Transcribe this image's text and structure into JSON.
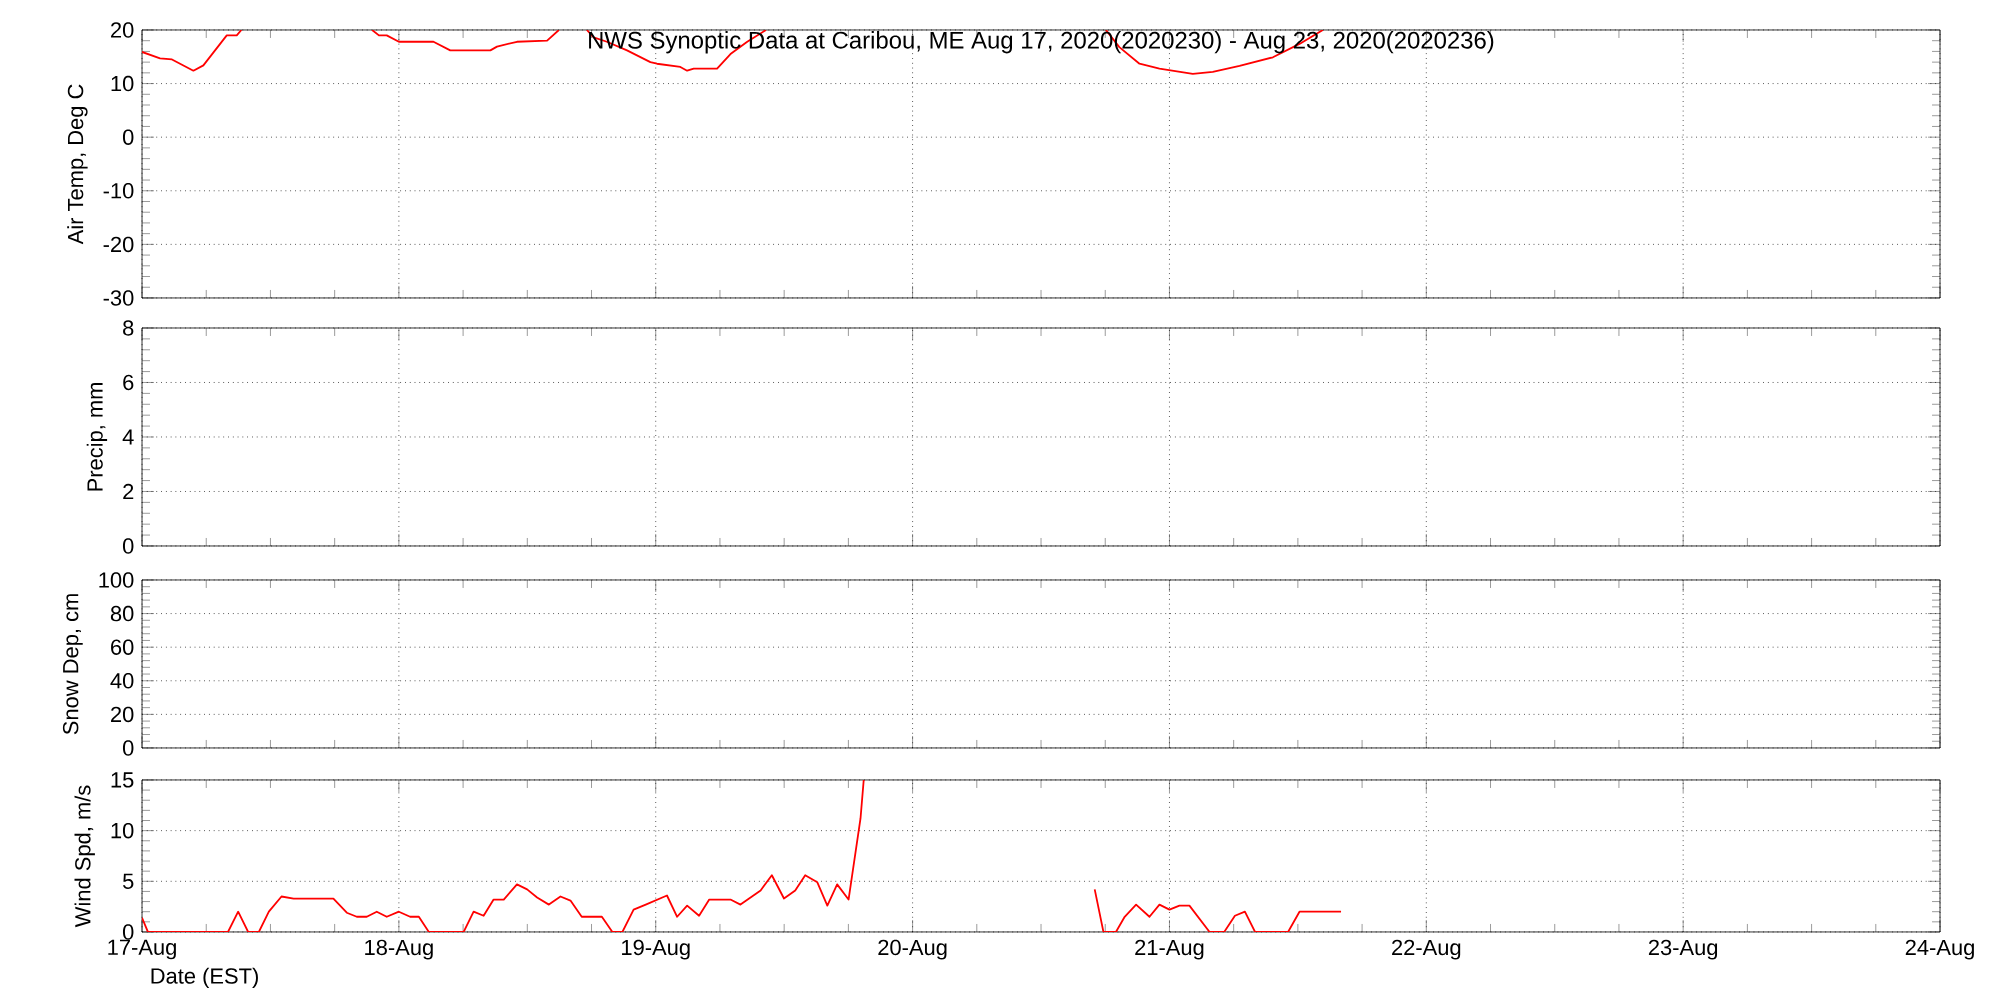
{
  "chart_data": [
    {
      "type": "line",
      "title": "NWS Synoptic Data at Caribou, ME   Aug 17, 2020(2020230) - Aug 23, 2020(2020236)",
      "ylabel": "Air Temp, Deg C",
      "color": "#ff0000",
      "x": [
        "2020-08-17T00:00",
        "2020-08-17T01:41",
        "2020-08-17T02:48",
        "2020-08-17T04:48",
        "2020-08-17T05:44",
        "2020-08-17T07:55",
        "2020-08-17T08:51",
        "2020-08-17T09:17",
        "2020-08-17T14:24",
        "2020-08-17T21:30",
        "2020-08-17T22:08",
        "2020-08-17T22:52",
        "2020-08-18T00:00",
        "2020-08-18T03:14",
        "2020-08-18T04:48",
        "2020-08-18T08:33",
        "2020-08-18T09:10",
        "2020-08-18T11:02",
        "2020-08-18T13:51",
        "2020-08-18T14:57",
        "2020-08-18T16:19",
        "2020-08-18T17:34",
        "2020-08-18T18:12",
        "2020-08-18T19:26",
        "2020-08-18T21:19",
        "2020-08-18T23:30",
        "2020-08-19T00:07",
        "2020-08-19T02:18",
        "2020-08-19T02:56",
        "2020-08-19T03:33",
        "2020-08-19T05:44",
        "2020-08-19T06:59",
        "2020-08-19T08:33",
        "2020-08-19T10:18",
        "2020-08-20T02:24",
        "2020-08-20T18:04",
        "2020-08-20T19:19",
        "2020-08-20T21:12",
        "2020-08-20T23:04",
        "2020-08-21T02:11",
        "2020-08-21T04:03",
        "2020-08-21T06:33",
        "2020-08-21T09:40",
        "2020-08-21T12:09",
        "2020-08-21T14:20"
      ],
      "values": [
        15.9,
        14.7,
        14.5,
        12.4,
        13.4,
        19.0,
        19.0,
        20,
        null,
        20,
        19.0,
        19.0,
        17.8,
        17.8,
        16.2,
        16.2,
        16.9,
        17.8,
        18.0,
        20,
        null,
        20,
        18.6,
        17.8,
        16.2,
        14.0,
        13.7,
        13.1,
        12.4,
        12.8,
        12.8,
        15.5,
        17.8,
        20,
        null,
        20,
        16.8,
        13.7,
        12.8,
        11.8,
        12.2,
        13.3,
        14.9,
        17.4,
        20
      ],
      "xlim": [
        "2020-08-17",
        "2020-08-24"
      ],
      "xticks": [
        {
          "value": "2020-08-17",
          "label": null
        },
        {
          "value": "2020-08-18",
          "label": null
        },
        {
          "value": "2020-08-19",
          "label": null
        },
        {
          "value": "2020-08-20",
          "label": null
        },
        {
          "value": "2020-08-21",
          "label": null
        },
        {
          "value": "2020-08-22",
          "label": null
        },
        {
          "value": "2020-08-23",
          "label": null
        },
        {
          "value": "2020-08-24",
          "label": null
        }
      ],
      "ylim": [
        -30,
        20
      ],
      "yticks": [
        -30,
        -20,
        -10,
        0,
        10,
        20
      ],
      "grid": true,
      "tick_labels": "y"
    },
    {
      "type": "line",
      "ylabel": "Precip, mm",
      "xlim": [
        "2020-08-17",
        "2020-08-24"
      ],
      "xticks": [
        {
          "value": "2020-08-17",
          "label": null
        },
        {
          "value": "2020-08-18",
          "label": null
        },
        {
          "value": "2020-08-19",
          "label": null
        },
        {
          "value": "2020-08-20",
          "label": null
        },
        {
          "value": "2020-08-21",
          "label": null
        },
        {
          "value": "2020-08-22",
          "label": null
        },
        {
          "value": "2020-08-23",
          "label": null
        },
        {
          "value": "2020-08-24",
          "label": null
        }
      ],
      "ylim": [
        0,
        8
      ],
      "yticks": [
        0,
        2,
        4,
        6,
        8
      ],
      "grid": true,
      "tick_labels": "y"
    },
    {
      "type": "line",
      "ylabel": "Snow Dep, cm",
      "xlim": [
        "2020-08-17",
        "2020-08-24"
      ],
      "xticks": [
        {
          "value": "2020-08-17",
          "label": null
        },
        {
          "value": "2020-08-18",
          "label": null
        },
        {
          "value": "2020-08-19",
          "label": null
        },
        {
          "value": "2020-08-20",
          "label": null
        },
        {
          "value": "2020-08-21",
          "label": null
        },
        {
          "value": "2020-08-22",
          "label": null
        },
        {
          "value": "2020-08-23",
          "label": null
        },
        {
          "value": "2020-08-24",
          "label": null
        }
      ],
      "ylim": [
        0,
        100
      ],
      "yticks": [
        0,
        20,
        40,
        60,
        80,
        100
      ],
      "grid": true,
      "tick_labels": "y"
    },
    {
      "type": "line",
      "xlabel": "Date (EST)",
      "ylabel": "Wind Spd, m/s",
      "color": "#ff0000",
      "x": [
        "2020-08-17T00:00",
        "2020-08-17T00:33",
        "2020-08-17T08:02",
        "2020-08-17T08:59",
        "2020-08-17T09:55",
        "2020-08-17T10:55",
        "2020-08-17T11:51",
        "2020-08-17T13:02",
        "2020-08-17T14:10",
        "2020-08-17T17:53",
        "2020-08-17T19:08",
        "2020-08-17T20:04",
        "2020-08-17T21:00",
        "2020-08-17T21:56",
        "2020-08-17T22:52",
        "2020-08-18T00:00",
        "2020-08-18T01:03",
        "2020-08-18T01:52",
        "2020-08-18T02:48",
        "2020-08-18T06:03",
        "2020-08-18T06:59",
        "2020-08-18T07:55",
        "2020-08-18T08:51",
        "2020-08-18T09:48",
        "2020-08-18T11:02",
        "2020-08-18T11:59",
        "2020-08-18T12:55",
        "2020-08-18T14:01",
        "2020-08-18T15:06",
        "2020-08-18T16:02",
        "2020-08-18T17:05",
        "2020-08-18T18:58",
        "2020-08-18T19:57",
        "2020-08-18T20:53",
        "2020-08-18T21:56",
        "2020-08-18T23:04",
        "2020-08-19T01:03",
        "2020-08-19T02:00",
        "2020-08-19T02:56",
        "2020-08-19T04:03",
        "2020-08-19T05:00",
        "2020-08-19T06:59",
        "2020-08-19T07:55",
        "2020-08-19T09:48",
        "2020-08-19T10:51",
        "2020-08-19T11:59",
        "2020-08-19T13:02",
        "2020-08-19T13:58",
        "2020-08-19T15:06",
        "2020-08-19T16:02",
        "2020-08-19T16:57",
        "2020-08-19T18:01",
        "2020-08-19T19:08",
        "2020-08-19T19:26",
        "2020-08-20T07:12",
        "2020-08-20T17:01",
        "2020-08-20T17:50",
        "2020-08-20T19:00",
        "2020-08-20T19:49",
        "2020-08-20T20:53",
        "2020-08-20T22:08",
        "2020-08-20T23:04",
        "2020-08-21T00:00",
        "2020-08-21T00:56",
        "2020-08-21T01:52",
        "2020-08-21T03:45",
        "2020-08-21T05:07",
        "2020-08-21T06:07",
        "2020-08-21T07:03",
        "2020-08-21T08:00",
        "2020-08-21T11:05",
        "2020-08-21T12:09",
        "2020-08-21T16:02"
      ],
      "values": [
        1.4,
        0,
        0,
        2.0,
        0,
        0,
        2.0,
        3.5,
        3.3,
        3.3,
        1.9,
        1.5,
        1.5,
        2.0,
        1.5,
        2.0,
        1.5,
        1.5,
        0,
        0,
        2.0,
        1.6,
        3.2,
        3.2,
        4.7,
        4.2,
        3.4,
        2.7,
        3.5,
        3.1,
        1.5,
        1.5,
        0,
        0,
        2.2,
        2.7,
        3.6,
        1.5,
        2.6,
        1.6,
        3.2,
        3.2,
        2.7,
        4.1,
        5.6,
        3.3,
        4.1,
        5.6,
        4.9,
        2.6,
        4.7,
        3.2,
        11.2,
        15,
        null,
        4.2,
        0,
        0,
        1.5,
        2.7,
        1.5,
        2.7,
        2.2,
        2.6,
        2.6,
        0,
        0,
        1.6,
        2.0,
        0,
        0,
        2.0,
        2.0
      ],
      "xlim": [
        "2020-08-17",
        "2020-08-24"
      ],
      "xticks": [
        {
          "value": "2020-08-17",
          "label": "17-Aug"
        },
        {
          "value": "2020-08-18",
          "label": "18-Aug"
        },
        {
          "value": "2020-08-19",
          "label": "19-Aug"
        },
        {
          "value": "2020-08-20",
          "label": "20-Aug"
        },
        {
          "value": "2020-08-21",
          "label": "21-Aug"
        },
        {
          "value": "2020-08-22",
          "label": "22-Aug"
        },
        {
          "value": "2020-08-23",
          "label": "23-Aug"
        },
        {
          "value": "2020-08-24",
          "label": "24-Aug"
        }
      ],
      "ylim": [
        0,
        15
      ],
      "yticks": [
        0,
        5,
        10,
        15
      ],
      "grid": true
    }
  ]
}
